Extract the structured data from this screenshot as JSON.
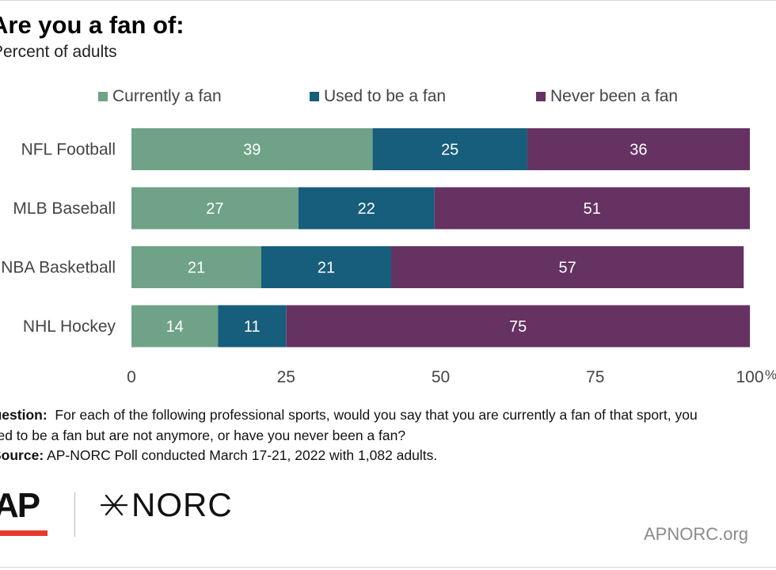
{
  "header": {
    "title": "Are you a fan of:",
    "subtitle": "Percent of adults"
  },
  "colors": {
    "currently": "#6fa287",
    "used_to": "#175d7c",
    "never": "#653262",
    "value_label": "#ffffff"
  },
  "chart_data": {
    "type": "bar",
    "orientation": "horizontal",
    "stacked": true,
    "categories": [
      "NFL Football",
      "MLB Baseball",
      "NBA Basketball",
      "NHL Hockey"
    ],
    "series": [
      {
        "name": "Currently a fan",
        "values": [
          39,
          27,
          21,
          14
        ]
      },
      {
        "name": "Used to be a fan",
        "values": [
          25,
          22,
          21,
          11
        ]
      },
      {
        "name": "Never been a fan",
        "values": [
          36,
          51,
          57,
          75
        ]
      }
    ],
    "xlim": [
      0,
      100
    ],
    "xticks": [
      0,
      25,
      50,
      75,
      100
    ],
    "x_unit": "%",
    "legend_position": "top",
    "grid": false,
    "data_labels": true
  },
  "notes": {
    "question_label": "Question:",
    "question_line1": "For each of the following professional sports, would you say that you are currently a fan of that sport, you",
    "question_line2": "used to be a fan but are not anymore, or have you never been a fan?",
    "source_label": "Source:",
    "source_text": "AP-NORC Poll conducted March 17-21, 2022 with 1,082 adults."
  },
  "branding": {
    "ap": "AP",
    "norc": "NORC",
    "norc_icon": "star-burst-icon",
    "site": "APNORC.org"
  }
}
